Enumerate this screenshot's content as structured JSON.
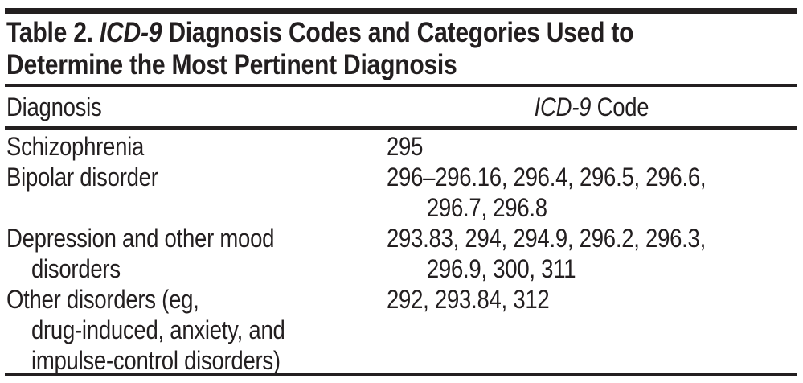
{
  "page": {
    "ink_color": "#231f20",
    "background_color": "#ffffff"
  },
  "title": {
    "line1_prefix": "Table 2. ",
    "line1_italic": "ICD-9",
    "line1_rest": " Diagnosis Codes and Categories Used to",
    "line2": "Determine the Most Pertinent Diagnosis"
  },
  "table": {
    "headers": {
      "diagnosis": "Diagnosis",
      "code_italic": "ICD-9",
      "code_rest": " Code"
    },
    "rows": [
      {
        "diagnosis": "Schizophrenia",
        "diagnosis_lines": [
          "Schizophrenia"
        ],
        "code": "295",
        "code_lines": [
          "295"
        ]
      },
      {
        "diagnosis": "Bipolar disorder",
        "diagnosis_lines": [
          "Bipolar disorder"
        ],
        "code": "296–296.16, 296.4, 296.5, 296.6, 296.7, 296.8",
        "code_lines": [
          "296–296.16, 296.4, 296.5, 296.6,",
          "296.7, 296.8"
        ]
      },
      {
        "diagnosis": "Depression and other mood disorders",
        "diagnosis_lines": [
          "Depression and other mood",
          "disorders"
        ],
        "code": "293.83, 294, 294.9, 296.2, 296.3, 296.9, 300, 311",
        "code_lines": [
          "293.83, 294, 294.9, 296.2, 296.3,",
          "296.9, 300, 311"
        ]
      },
      {
        "diagnosis": "Other disorders (eg, drug-induced, anxiety, and impulse-control disorders)",
        "diagnosis_lines": [
          "Other disorders (eg,",
          "drug-induced, anxiety, and",
          "impulse-control disorders)"
        ],
        "code": "292, 293.84, 312",
        "code_lines": [
          "292, 293.84, 312"
        ]
      }
    ]
  }
}
